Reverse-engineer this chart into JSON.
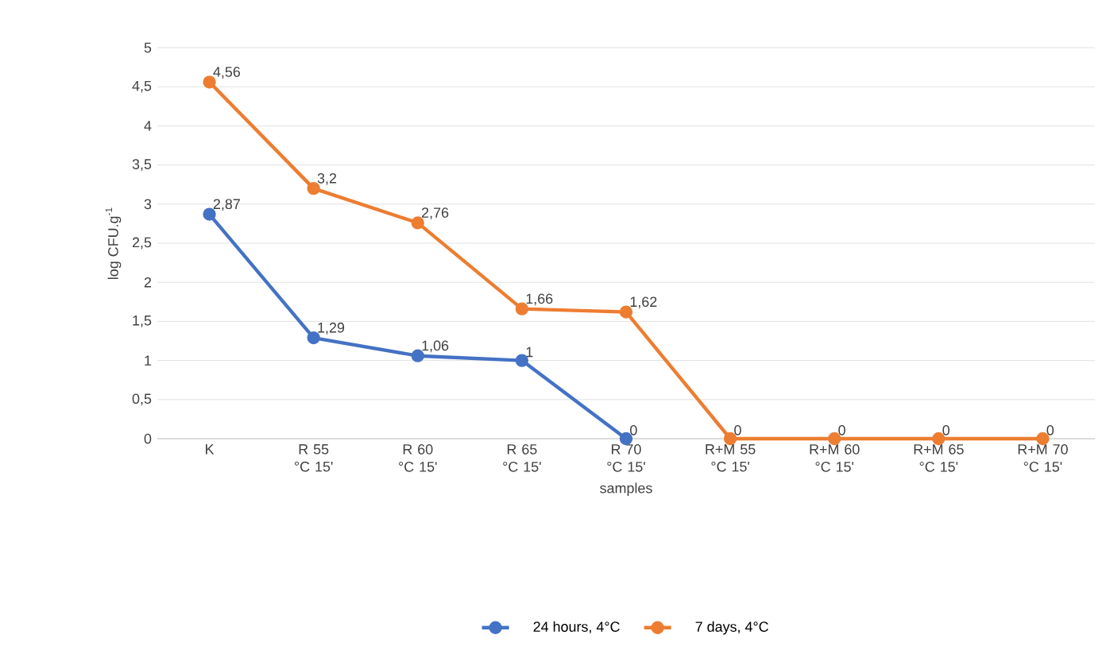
{
  "chart_data": {
    "type": "line",
    "xlabel": "samples",
    "ylabel": "log CFU.g$^{-1}$",
    "categories": [
      "K",
      "R 55 °C 15'",
      "R 60 °C 15'",
      "R 65 °C 15'",
      "R 70 °C 15'",
      "R+M 55 °C 15'",
      "R+M 60 °C 15'",
      "R+M 65 °C 15'",
      "R+M 70 °C 15'"
    ],
    "series": [
      {
        "name": "24 hours, 4°C",
        "color": "#4472c4",
        "values": [
          2.87,
          1.29,
          1.06,
          1,
          0,
          null,
          null,
          null,
          null
        ],
        "value_labels": [
          "2,87",
          "1,29",
          "1,06",
          "1",
          "0",
          null,
          null,
          null,
          null
        ]
      },
      {
        "name": "7 days, 4°C",
        "color": "#ed7d31",
        "values": [
          4.56,
          3.2,
          2.76,
          1.66,
          1.62,
          0,
          0,
          0,
          0
        ],
        "value_labels": [
          "4,56",
          "3,2",
          "2,76",
          "1,66",
          "1,62",
          "0",
          "0",
          "0",
          "0"
        ]
      }
    ],
    "ylim": [
      0,
      5
    ],
    "yticks": [
      0,
      {
        "value": 0.5,
        "label": "0,5"
      },
      1,
      {
        "value": 1.5,
        "label": "1,5"
      },
      2,
      {
        "value": 2.5,
        "label": "2,5"
      },
      3,
      {
        "value": 3.5,
        "label": "3,5"
      },
      4,
      {
        "value": 4.5,
        "label": "4,5"
      },
      5
    ],
    "grid": "y",
    "legend": "bottom",
    "marker": "circle",
    "line_style": "solid"
  }
}
